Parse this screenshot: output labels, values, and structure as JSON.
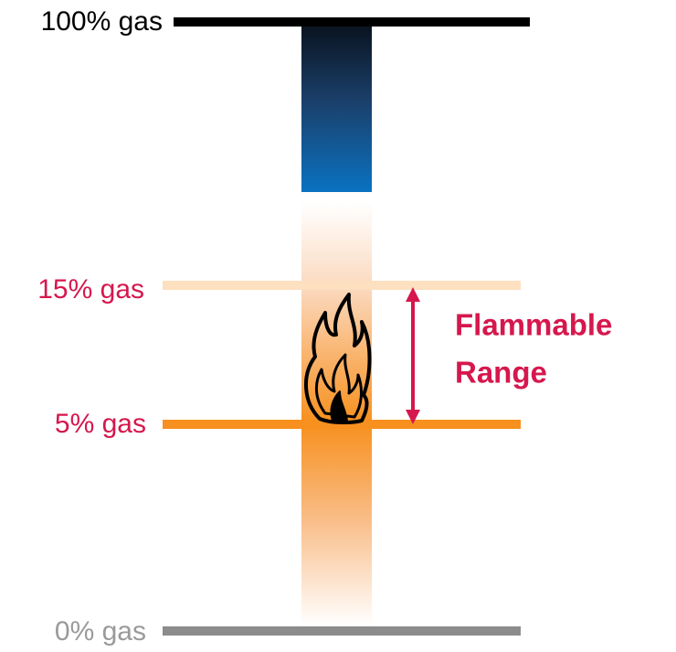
{
  "levels": [
    {
      "label": "100% gas"
    },
    {
      "label": "15% gas"
    },
    {
      "label": "5% gas"
    },
    {
      "label": "0% gas"
    }
  ],
  "annotation": {
    "lines": [
      "Flammable",
      "Range"
    ]
  }
}
